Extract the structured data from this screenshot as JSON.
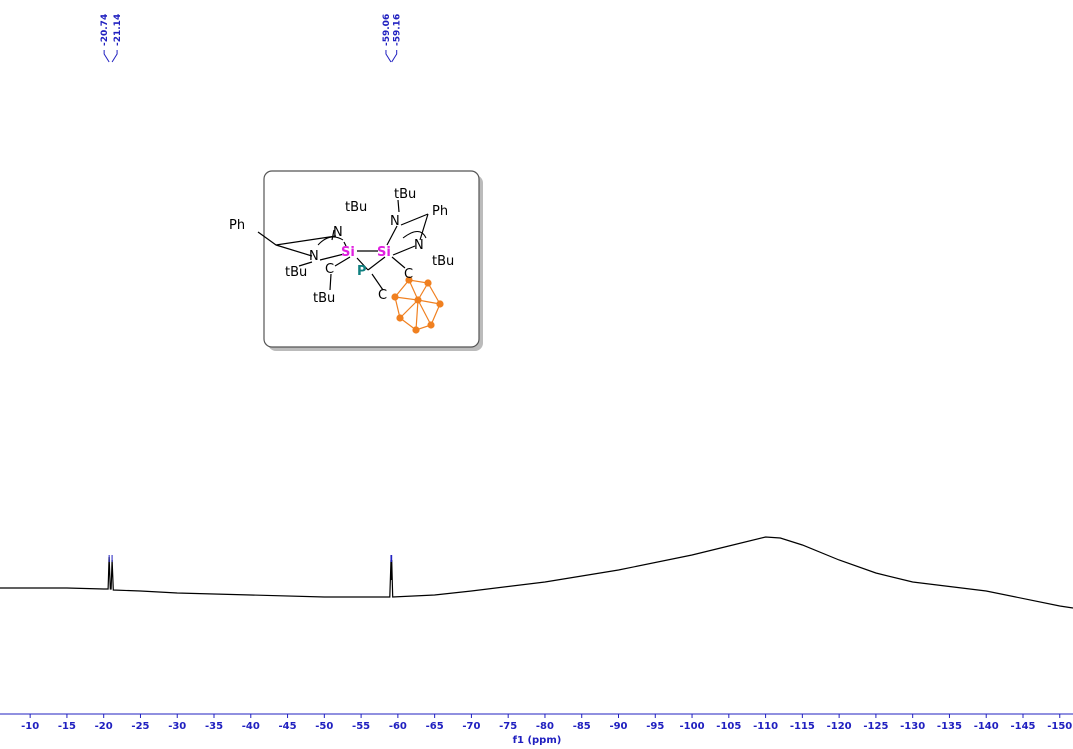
{
  "chart_data": {
    "type": "line",
    "x_label": "f1 (ppm)",
    "xlim": [
      -5.9,
      -151.8
    ],
    "xticks": [
      -10,
      -15,
      -20,
      -25,
      -30,
      -35,
      -40,
      -45,
      -50,
      -55,
      -60,
      -65,
      -70,
      -75,
      -80,
      -85,
      -90,
      -95,
      -100,
      -105,
      -110,
      -115,
      -120,
      -125,
      -130,
      -135,
      -140,
      -145,
      -150
    ],
    "peak_labels": [
      -20.74,
      -21.14,
      -59.06,
      -59.16
    ],
    "color": "#000000",
    "label_color": "#2020c0",
    "x": [
      -5.9,
      -10,
      -15,
      -20,
      -20.6,
      -20.74,
      -20.9,
      -21.0,
      -21.14,
      -21.3,
      -25,
      -30,
      -40,
      -50,
      -58.9,
      -59.06,
      -59.11,
      -59.16,
      -59.3,
      -65,
      -70,
      -80,
      -90,
      -100,
      -105,
      -110,
      -112,
      -115,
      -120,
      -125,
      -130,
      -140,
      -150,
      -151.8
    ],
    "values": [
      12,
      12,
      12,
      11,
      11,
      43,
      11,
      11,
      40,
      10,
      9,
      7,
      5,
      3,
      3,
      40,
      20,
      40,
      3,
      5,
      9,
      18,
      30,
      45,
      54,
      63,
      62,
      55,
      40,
      27,
      18,
      9,
      -6,
      -8
    ]
  },
  "inset": {
    "labels": [
      "tBu",
      "Ph",
      "N",
      "Si",
      "Si",
      "tBu",
      "N",
      "Ph",
      "N",
      "tBu",
      "N",
      "tBu",
      "C",
      "P",
      "C",
      "C",
      "tBu"
    ]
  }
}
